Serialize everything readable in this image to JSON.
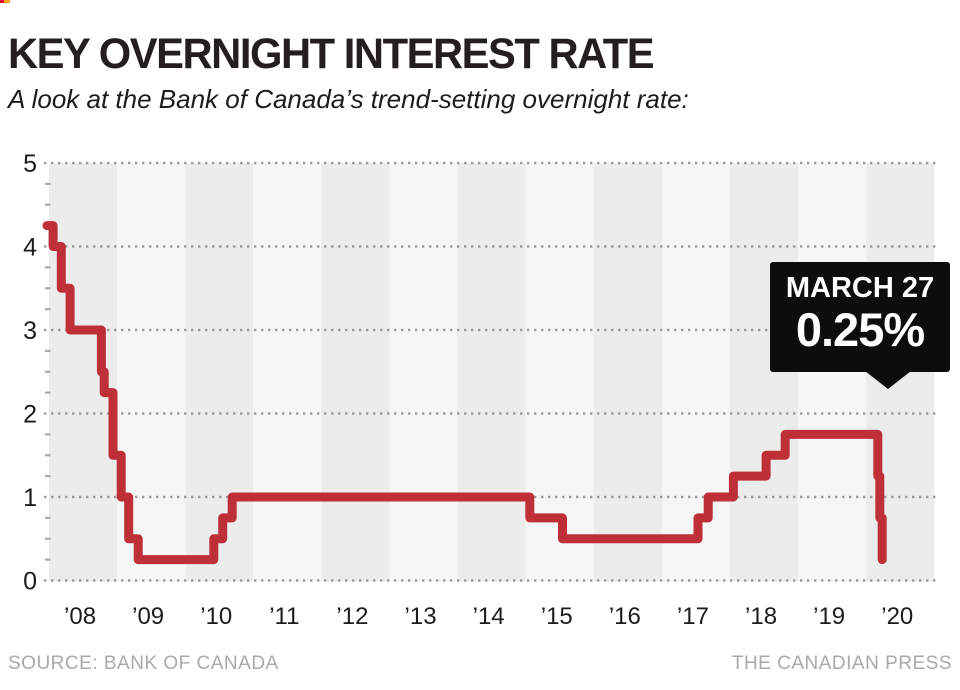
{
  "header": {
    "title": "KEY OVERNIGHT INTEREST RATE",
    "subtitle": "A look at the Bank of Canada’s trend-setting overnight rate:"
  },
  "callout": {
    "date_label": "MARCH 27",
    "rate_label": "0.25%"
  },
  "footer": {
    "source": "SOURCE: BANK OF CANADA",
    "credit": "THE CANADIAN PRESS"
  },
  "colors": {
    "line": "#bf2f38",
    "callout_bg": "#0d0d0d",
    "callout_text": "#ffffff",
    "stripe_dark": "#ececec",
    "stripe_light": "#f6f6f6",
    "grid_dot": "#9a9a9a",
    "minor_tick": "#a9a9a9",
    "axis_text": "#1c1c1c",
    "title_text": "#231f20",
    "footer_text": "#a9a9a9",
    "corner_red": "#e8112d",
    "corner_yellow": "#f9a11b"
  },
  "chart_data": {
    "type": "line",
    "subtype": "step",
    "title": "Bank of Canada key overnight interest rate (%)",
    "xlabel": "",
    "ylabel": "",
    "ylim": [
      0,
      5
    ],
    "y_ticks": [
      5,
      4,
      3,
      2,
      1,
      0
    ],
    "y_tick_labels": [
      "5",
      "4",
      "3",
      "2",
      "1",
      "0"
    ],
    "y_minor_tick_interval": 0.25,
    "x_range_years": [
      2008,
      2021
    ],
    "x_tick_labels": [
      "’08",
      "’09",
      "’10",
      "’11",
      "’12",
      "’13",
      "’14",
      "’15",
      "’16",
      "’17",
      "’18",
      "’19",
      "’20"
    ],
    "grid": "dotted-horizontal",
    "background_bands": "alternating-year-stripes",
    "legend": "none",
    "series": [
      {
        "name": "Overnight rate (%)",
        "points": [
          [
            2007.97,
            4.25
          ],
          [
            2008.06,
            4.0
          ],
          [
            2008.18,
            3.5
          ],
          [
            2008.31,
            3.0
          ],
          [
            2008.77,
            2.5
          ],
          [
            2008.81,
            2.25
          ],
          [
            2008.94,
            1.5
          ],
          [
            2009.06,
            1.0
          ],
          [
            2009.17,
            0.5
          ],
          [
            2009.31,
            0.25
          ],
          [
            2010.42,
            0.5
          ],
          [
            2010.55,
            0.75
          ],
          [
            2010.69,
            1.0
          ],
          [
            2015.06,
            0.75
          ],
          [
            2015.54,
            0.5
          ],
          [
            2017.53,
            0.75
          ],
          [
            2017.68,
            1.0
          ],
          [
            2018.05,
            1.25
          ],
          [
            2018.53,
            1.5
          ],
          [
            2018.81,
            1.75
          ],
          [
            2020.17,
            1.25
          ],
          [
            2020.2,
            0.75
          ],
          [
            2020.235,
            0.25
          ]
        ]
      }
    ],
    "annotation": {
      "label": "MARCH 27",
      "value": "0.25%",
      "points_to": {
        "year": 2020.235,
        "rate": 0.25
      }
    }
  }
}
